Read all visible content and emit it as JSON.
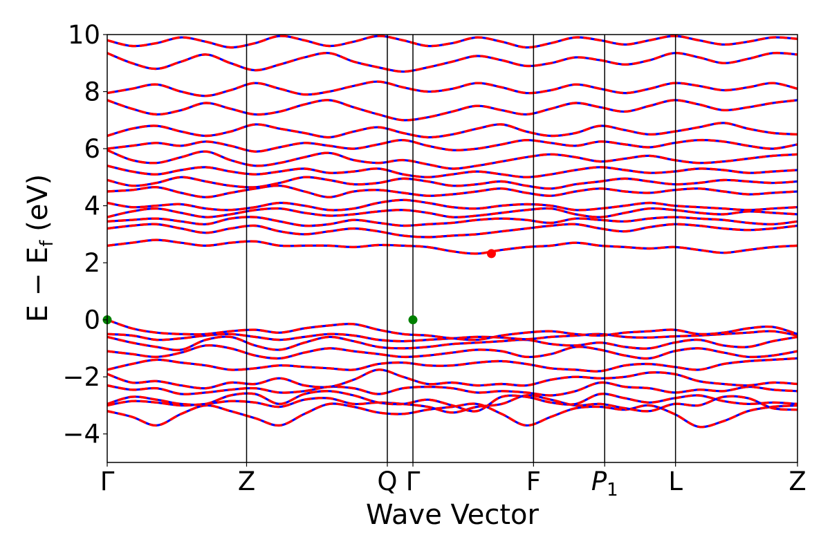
{
  "chart_data": {
    "type": "line",
    "xlabel": "Wave Vector",
    "ylabel": {
      "main": "E − E",
      "sub": "f",
      "unit": " (eV)"
    },
    "ylim": [
      -5,
      10
    ],
    "yticks": [
      "−4",
      "−2",
      "0",
      "2",
      "4",
      "6",
      "8",
      "10"
    ],
    "ytick_values": [
      -4,
      -2,
      0,
      2,
      4,
      6,
      8,
      10
    ],
    "kpoints": [
      {
        "label": "Γ",
        "x": 0.0
      },
      {
        "label": "Z",
        "x": 0.2019
      },
      {
        "label": "Q",
        "x": 0.4058
      },
      {
        "label": "Γ",
        "x": 0.4429
      },
      {
        "label": "F",
        "x": 0.6176
      },
      {
        "label": "P",
        "sub": "1",
        "x": 0.7207
      },
      {
        "label": "L",
        "x": 0.8233
      },
      {
        "label": "Z",
        "x": 1.0
      }
    ],
    "x_range": [
      0,
      1
    ],
    "grid": false,
    "line_styles": {
      "solid_color": "#0000ff",
      "dashed_color": "#ff0000"
    },
    "markers": [
      {
        "name": "vbm",
        "x": 0.0,
        "y": 0.0,
        "color": "#008000"
      },
      {
        "name": "vbm",
        "x": 0.4429,
        "y": 0.0,
        "color": "#008000"
      },
      {
        "name": "cbm",
        "x": 0.5566,
        "y": 2.32,
        "color": "#ff0000"
      }
    ],
    "bands": [
      [
        -3.2,
        -3.4,
        -3.7,
        -3.3,
        -3.0,
        -3.2,
        -3.45,
        -3.7,
        -3.3,
        -2.95,
        -3.05,
        -3.25,
        -3.3,
        -3.15,
        -3.05,
        -2.95,
        -3.3,
        -3.7,
        -3.4,
        -3.1,
        -3.05,
        -3.15,
        -3.0,
        -3.3,
        -3.75,
        -3.55,
        -3.2,
        -3.05,
        -3.0
      ],
      [
        -3.0,
        -2.85,
        -2.9,
        -3.0,
        -2.95,
        -2.85,
        -2.9,
        -3.05,
        -2.8,
        -2.75,
        -2.95,
        -2.9,
        -2.95,
        -3.05,
        -3.25,
        -3.05,
        -2.95,
        -2.65,
        -2.8,
        -3.0,
        -2.95,
        -3.1,
        -3.2,
        -2.95,
        -3.0,
        -2.7,
        -2.75,
        -3.1,
        -3.15
      ],
      [
        -2.95,
        -2.7,
        -2.8,
        -2.95,
        -2.95,
        -2.65,
        -2.6,
        -2.95,
        -2.6,
        -2.5,
        -2.65,
        -2.9,
        -2.95,
        -2.8,
        -3.0,
        -3.2,
        -2.7,
        -2.7,
        -2.9,
        -2.95,
        -2.6,
        -2.75,
        -2.9,
        -2.75,
        -2.65,
        -2.85,
        -2.95,
        -2.9,
        -2.95
      ],
      [
        -2.3,
        -2.45,
        -2.4,
        -2.6,
        -2.55,
        -2.45,
        -2.4,
        -2.55,
        -2.5,
        -2.35,
        -2.4,
        -2.6,
        -2.4,
        -2.35,
        -2.4,
        -2.55,
        -2.5,
        -2.55,
        -2.65,
        -2.5,
        -2.2,
        -2.35,
        -2.4,
        -2.55,
        -2.45,
        -2.5,
        -2.35,
        -2.45,
        -2.5
      ],
      [
        -1.9,
        -2.2,
        -2.15,
        -2.3,
        -2.4,
        -2.2,
        -2.25,
        -2.05,
        -2.3,
        -2.35,
        -2.1,
        -1.75,
        -2.0,
        -2.25,
        -2.2,
        -2.3,
        -2.25,
        -2.3,
        -2.1,
        -2.0,
        -2.05,
        -2.0,
        -1.85,
        -1.9,
        -2.15,
        -2.25,
        -2.3,
        -2.2,
        -2.25
      ],
      [
        -1.75,
        -1.55,
        -1.4,
        -1.5,
        -1.6,
        -1.75,
        -1.7,
        -1.6,
        -1.65,
        -1.7,
        -1.75,
        -1.55,
        -1.5,
        -1.6,
        -1.6,
        -1.5,
        -1.45,
        -1.55,
        -1.7,
        -1.75,
        -1.8,
        -1.6,
        -1.55,
        -1.65,
        -1.75,
        -1.55,
        -1.45,
        -1.4,
        -1.35
      ],
      [
        -1.1,
        -1.2,
        -1.3,
        -1.15,
        -0.9,
        -1.0,
        -1.25,
        -1.35,
        -1.15,
        -1.0,
        -1.1,
        -1.2,
        -1.3,
        -1.25,
        -1.15,
        -1.05,
        -1.1,
        -1.3,
        -1.2,
        -0.95,
        -1.05,
        -1.25,
        -1.35,
        -1.1,
        -1.0,
        -1.15,
        -1.3,
        -1.25,
        -1.1
      ],
      [
        -0.6,
        -0.8,
        -0.95,
        -1.05,
        -0.7,
        -0.6,
        -0.9,
        -1.05,
        -0.8,
        -0.6,
        -0.75,
        -0.95,
        -1.0,
        -0.95,
        -0.85,
        -0.8,
        -0.75,
        -0.7,
        -0.85,
        -0.9,
        -0.8,
        -0.95,
        -1.0,
        -0.8,
        -0.7,
        -0.9,
        -0.95,
        -0.75,
        -0.6
      ],
      [
        -0.5,
        -0.55,
        -0.7,
        -0.65,
        -0.55,
        -0.5,
        -0.6,
        -0.7,
        -0.6,
        -0.5,
        -0.55,
        -0.7,
        -0.75,
        -0.7,
        -0.65,
        -0.6,
        -0.62,
        -0.68,
        -0.6,
        -0.55,
        -0.5,
        -0.6,
        -0.62,
        -0.58,
        -0.55,
        -0.5,
        -0.45,
        -0.4,
        -0.55
      ],
      [
        0.0,
        -0.3,
        -0.45,
        -0.5,
        -0.5,
        -0.4,
        -0.35,
        -0.45,
        -0.3,
        -0.2,
        -0.15,
        -0.35,
        -0.5,
        -0.55,
        -0.65,
        -0.7,
        -0.55,
        -0.45,
        -0.4,
        -0.5,
        -0.55,
        -0.45,
        -0.4,
        -0.35,
        -0.5,
        -0.45,
        -0.3,
        -0.25,
        -0.5
      ],
      [
        2.6,
        2.7,
        2.8,
        2.7,
        2.6,
        2.7,
        2.75,
        2.6,
        2.6,
        2.6,
        2.55,
        2.62,
        2.6,
        2.55,
        2.4,
        2.32,
        2.45,
        2.55,
        2.6,
        2.7,
        2.6,
        2.55,
        2.5,
        2.55,
        2.45,
        2.35,
        2.45,
        2.55,
        2.6
      ],
      [
        3.2,
        3.3,
        3.35,
        3.2,
        3.05,
        3.2,
        3.3,
        3.1,
        3.0,
        3.1,
        3.2,
        3.1,
        2.95,
        2.9,
        2.95,
        3.0,
        3.1,
        3.2,
        3.3,
        3.35,
        3.2,
        3.1,
        3.25,
        3.35,
        3.3,
        3.2,
        3.15,
        3.2,
        3.3
      ],
      [
        3.45,
        3.5,
        3.55,
        3.45,
        3.35,
        3.55,
        3.6,
        3.45,
        3.3,
        3.35,
        3.5,
        3.4,
        3.3,
        3.35,
        3.4,
        3.5,
        3.55,
        3.5,
        3.4,
        3.55,
        3.5,
        3.45,
        3.55,
        3.6,
        3.55,
        3.5,
        3.4,
        3.35,
        3.45
      ],
      [
        3.6,
        3.8,
        3.9,
        3.75,
        3.6,
        3.7,
        3.85,
        3.9,
        3.75,
        3.65,
        3.7,
        3.8,
        3.85,
        3.75,
        3.6,
        3.65,
        3.75,
        3.85,
        3.9,
        3.7,
        3.6,
        3.75,
        3.9,
        3.85,
        3.75,
        3.7,
        3.8,
        3.75,
        3.7
      ],
      [
        4.1,
        3.95,
        4.0,
        4.05,
        3.9,
        3.85,
        3.95,
        4.1,
        4.0,
        3.85,
        3.9,
        4.1,
        4.2,
        4.1,
        3.95,
        3.9,
        4.0,
        4.05,
        4.0,
        3.85,
        3.9,
        4.0,
        4.1,
        4.0,
        3.95,
        3.9,
        3.85,
        3.9,
        3.95
      ],
      [
        4.5,
        4.55,
        4.65,
        4.45,
        4.3,
        4.45,
        4.6,
        4.7,
        4.5,
        4.3,
        4.5,
        4.55,
        4.45,
        4.35,
        4.4,
        4.5,
        4.6,
        4.45,
        4.35,
        4.5,
        4.6,
        4.5,
        4.45,
        4.55,
        4.6,
        4.5,
        4.4,
        4.45,
        4.5
      ],
      [
        4.9,
        4.7,
        4.8,
        5.0,
        4.85,
        4.7,
        4.65,
        4.8,
        5.0,
        4.9,
        4.75,
        4.8,
        4.95,
        4.85,
        4.7,
        4.75,
        4.85,
        4.7,
        4.6,
        4.75,
        4.85,
        4.95,
        4.85,
        4.75,
        4.8,
        4.9,
        4.85,
        4.8,
        4.85
      ],
      [
        5.4,
        5.2,
        5.1,
        5.25,
        5.35,
        5.2,
        5.1,
        5.2,
        5.3,
        5.15,
        5.2,
        5.3,
        5.1,
        5.0,
        5.1,
        5.2,
        5.1,
        5.0,
        5.1,
        5.25,
        5.35,
        5.25,
        5.15,
        5.2,
        5.3,
        5.25,
        5.15,
        5.2,
        5.25
      ],
      [
        5.95,
        5.6,
        5.5,
        5.7,
        5.9,
        5.6,
        5.4,
        5.5,
        5.7,
        5.85,
        5.6,
        5.5,
        5.6,
        5.45,
        5.3,
        5.4,
        5.55,
        5.7,
        5.8,
        5.7,
        5.55,
        5.65,
        5.75,
        5.6,
        5.5,
        5.55,
        5.65,
        5.75,
        5.8
      ],
      [
        6.0,
        6.1,
        6.2,
        6.1,
        6.25,
        6.1,
        5.9,
        6.05,
        6.2,
        6.1,
        6.0,
        6.15,
        6.3,
        6.1,
        5.95,
        6.0,
        6.15,
        6.3,
        6.2,
        6.1,
        6.25,
        6.15,
        6.05,
        6.2,
        6.3,
        6.25,
        6.1,
        6.0,
        6.15
      ],
      [
        6.45,
        6.7,
        6.8,
        6.6,
        6.45,
        6.6,
        6.85,
        6.7,
        6.55,
        6.4,
        6.6,
        6.75,
        6.55,
        6.4,
        6.5,
        6.7,
        6.85,
        6.6,
        6.45,
        6.55,
        6.8,
        6.65,
        6.5,
        6.6,
        6.75,
        6.9,
        6.7,
        6.55,
        6.5
      ],
      [
        7.7,
        7.4,
        7.2,
        7.35,
        7.6,
        7.4,
        7.2,
        7.3,
        7.55,
        7.7,
        7.45,
        7.2,
        7.0,
        7.1,
        7.3,
        7.5,
        7.35,
        7.2,
        7.4,
        7.6,
        7.45,
        7.3,
        7.5,
        7.7,
        7.55,
        7.35,
        7.45,
        7.6,
        7.7
      ],
      [
        7.95,
        8.1,
        8.25,
        8.0,
        7.85,
        8.05,
        8.3,
        8.1,
        7.9,
        8.0,
        8.2,
        8.35,
        8.15,
        8.0,
        8.1,
        8.3,
        8.15,
        7.95,
        8.05,
        8.25,
        8.1,
        7.95,
        8.1,
        8.3,
        8.2,
        8.05,
        8.15,
        8.3,
        8.1
      ],
      [
        9.35,
        9.0,
        8.8,
        9.05,
        9.3,
        9.0,
        8.75,
        8.95,
        9.2,
        9.35,
        9.05,
        8.85,
        8.7,
        8.85,
        9.05,
        9.25,
        9.1,
        8.9,
        9.0,
        9.2,
        9.1,
        8.95,
        9.1,
        9.35,
        9.2,
        9.0,
        9.15,
        9.35,
        9.3
      ],
      [
        9.8,
        9.6,
        9.7,
        9.9,
        9.75,
        9.55,
        9.7,
        9.95,
        9.8,
        9.6,
        9.75,
        9.95,
        9.8,
        9.6,
        9.7,
        9.9,
        9.75,
        9.55,
        9.7,
        9.9,
        9.8,
        9.65,
        9.8,
        9.95,
        9.8,
        9.65,
        9.75,
        9.9,
        9.85
      ]
    ]
  }
}
